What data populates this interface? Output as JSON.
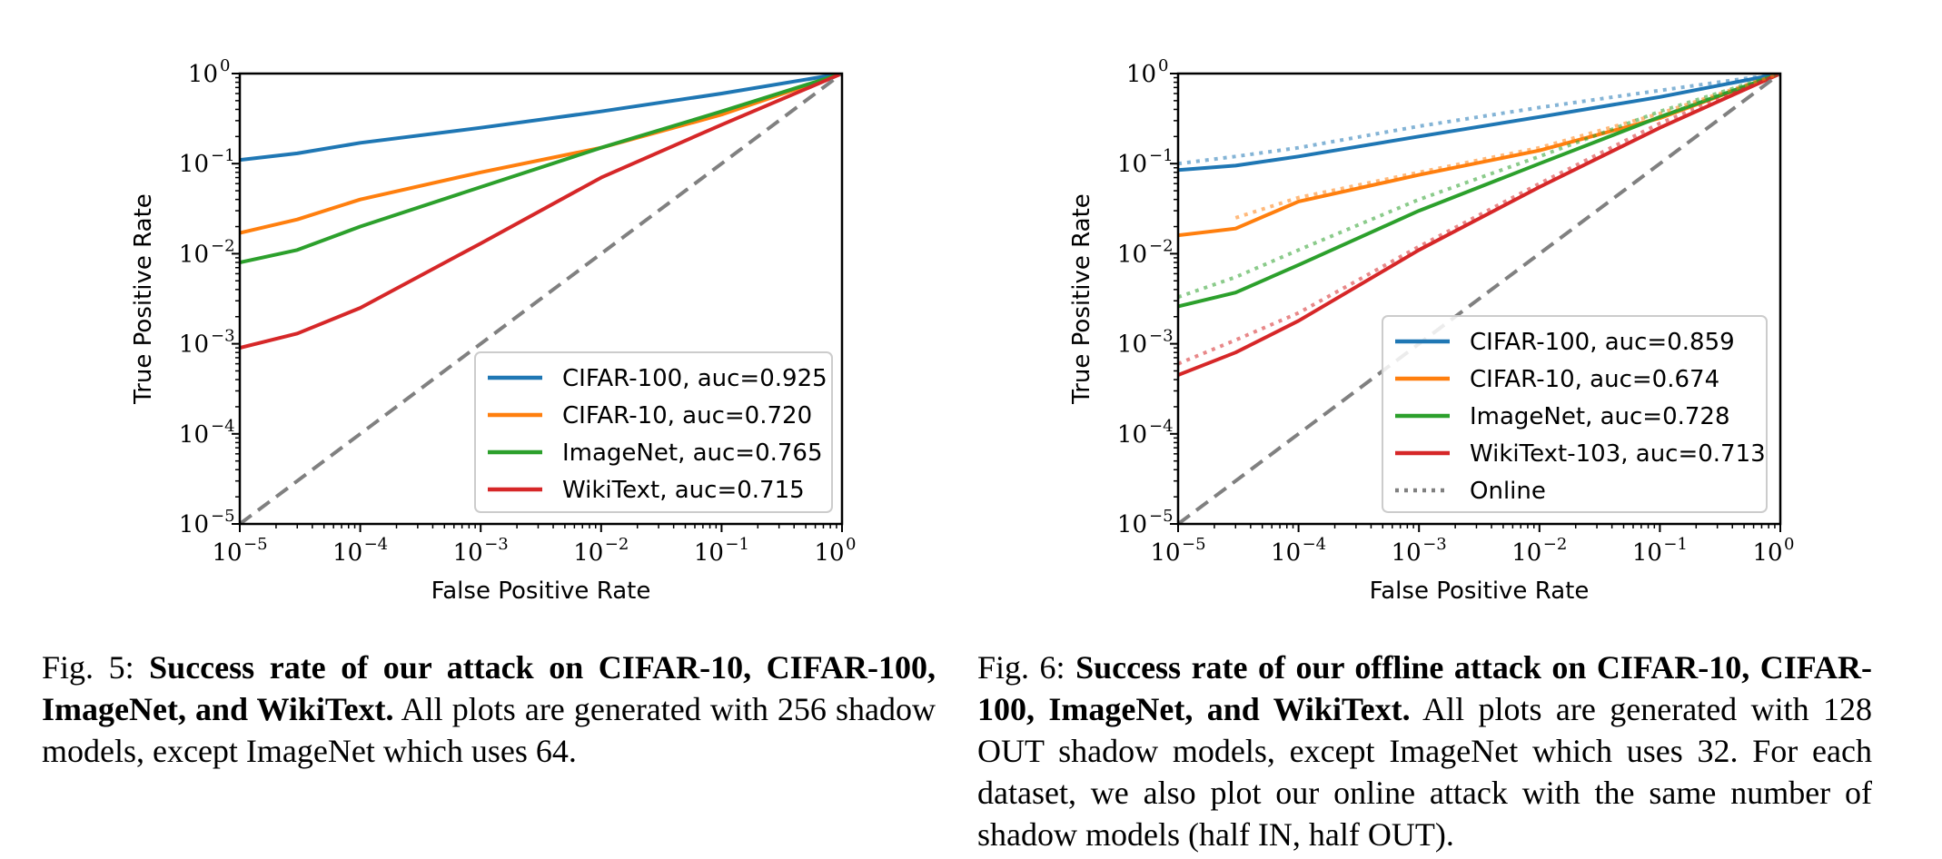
{
  "chart_data": [
    {
      "type": "line",
      "xscale": "log",
      "yscale": "log",
      "xlim": [
        1e-05,
        1
      ],
      "ylim": [
        1e-05,
        1
      ],
      "xlabel": "False Positive Rate",
      "ylabel": "True Positive Rate",
      "xticks": [
        "10",
        "10",
        "10",
        "10",
        "10",
        "10"
      ],
      "xtick_exps": [
        "−5",
        "−4",
        "−3",
        "−2",
        "−1",
        "0"
      ],
      "yticks": [
        "10",
        "10",
        "10",
        "10",
        "10",
        "10"
      ],
      "ytick_exps": [
        "0",
        "−1",
        "−2",
        "−3",
        "−4",
        "−5"
      ],
      "legend_position": "lower-right",
      "series": [
        {
          "name": "CIFAR-100, auc=0.925",
          "color": "#1f77b4",
          "x": [
            1e-05,
            3e-05,
            0.0001,
            0.001,
            0.01,
            0.1,
            1
          ],
          "y": [
            0.11,
            0.13,
            0.17,
            0.25,
            0.38,
            0.6,
            1
          ]
        },
        {
          "name": "CIFAR-10, auc=0.720",
          "color": "#ff7f0e",
          "x": [
            1e-05,
            3e-05,
            0.0001,
            0.001,
            0.01,
            0.1,
            1
          ],
          "y": [
            0.017,
            0.024,
            0.04,
            0.08,
            0.15,
            0.35,
            1
          ]
        },
        {
          "name": "ImageNet, auc=0.765",
          "color": "#2ca02c",
          "x": [
            1e-05,
            3e-05,
            0.0001,
            0.001,
            0.01,
            0.1,
            1
          ],
          "y": [
            0.008,
            0.011,
            0.02,
            0.055,
            0.15,
            0.38,
            1
          ]
        },
        {
          "name": "WikiText, auc=0.715",
          "color": "#d62728",
          "x": [
            1e-05,
            3e-05,
            0.0001,
            0.001,
            0.01,
            0.1,
            1
          ],
          "y": [
            0.0009,
            0.0013,
            0.0025,
            0.013,
            0.07,
            0.27,
            1
          ]
        },
        {
          "name": "",
          "color": "#808080",
          "dash": true,
          "x": [
            1e-05,
            1
          ],
          "y": [
            1e-05,
            1
          ]
        }
      ]
    },
    {
      "type": "line",
      "xscale": "log",
      "yscale": "log",
      "xlim": [
        1e-05,
        1
      ],
      "ylim": [
        1e-05,
        1
      ],
      "xlabel": "False Positive Rate",
      "ylabel": "True Positive Rate",
      "xticks": [
        "10",
        "10",
        "10",
        "10",
        "10",
        "10"
      ],
      "xtick_exps": [
        "−5",
        "−4",
        "−3",
        "−2",
        "−1",
        "0"
      ],
      "yticks": [
        "10",
        "10",
        "10",
        "10",
        "10",
        "10"
      ],
      "ytick_exps": [
        "0",
        "−1",
        "−2",
        "−3",
        "−4",
        "−5"
      ],
      "legend_position": "lower-right",
      "series": [
        {
          "name": "CIFAR-100, auc=0.859",
          "color": "#1f77b4",
          "x": [
            1e-05,
            3e-05,
            0.0001,
            0.001,
            0.01,
            0.1,
            1
          ],
          "y": [
            0.085,
            0.095,
            0.12,
            0.2,
            0.33,
            0.55,
            1
          ]
        },
        {
          "name": "CIFAR-10, auc=0.674",
          "color": "#ff7f0e",
          "x": [
            1e-05,
            3e-05,
            0.0001,
            0.001,
            0.01,
            0.1,
            1
          ],
          "y": [
            0.016,
            0.019,
            0.038,
            0.075,
            0.14,
            0.32,
            1
          ]
        },
        {
          "name": "ImageNet, auc=0.728",
          "color": "#2ca02c",
          "x": [
            1e-05,
            3e-05,
            0.0001,
            0.001,
            0.01,
            0.1,
            1
          ],
          "y": [
            0.0026,
            0.0037,
            0.0075,
            0.03,
            0.1,
            0.33,
            1
          ]
        },
        {
          "name": "WikiText-103, auc=0.713",
          "color": "#d62728",
          "x": [
            1e-05,
            3e-05,
            0.0001,
            0.001,
            0.01,
            0.1,
            1
          ],
          "y": [
            0.00045,
            0.0008,
            0.0018,
            0.011,
            0.055,
            0.25,
            1
          ]
        },
        {
          "name": "",
          "color": "#1f77b4",
          "online": true,
          "x": [
            1e-05,
            3e-05,
            0.0001,
            0.001,
            0.01,
            0.1,
            1
          ],
          "y": [
            0.1,
            0.12,
            0.15,
            0.26,
            0.42,
            0.65,
            1
          ]
        },
        {
          "name": "",
          "color": "#ff7f0e",
          "online": true,
          "x": [
            3e-05,
            0.0001,
            0.001,
            0.01,
            0.1,
            1
          ],
          "y": [
            0.025,
            0.042,
            0.08,
            0.15,
            0.36,
            1
          ]
        },
        {
          "name": "",
          "color": "#2ca02c",
          "online": true,
          "x": [
            1e-05,
            3e-05,
            0.0001,
            0.001,
            0.01,
            0.1,
            1
          ],
          "y": [
            0.0033,
            0.0055,
            0.011,
            0.04,
            0.12,
            0.38,
            1
          ]
        },
        {
          "name": "",
          "color": "#d62728",
          "online": true,
          "x": [
            1e-05,
            3e-05,
            0.0001,
            0.001,
            0.01,
            0.1,
            1
          ],
          "y": [
            0.0006,
            0.0011,
            0.0022,
            0.012,
            0.06,
            0.28,
            1
          ]
        },
        {
          "name": "",
          "color": "#808080",
          "dash": true,
          "x": [
            1e-05,
            1
          ],
          "y": [
            1e-05,
            1
          ]
        }
      ],
      "legend_extra": {
        "name": "Online",
        "color": "#808080",
        "style": "dotted"
      }
    }
  ],
  "captions": [
    {
      "label": "Fig. 5:",
      "bold": "Success rate of our attack on CIFAR-10, CIFAR-100, ImageNet, and WikiText.",
      "text": "All plots are generated with 256 shadow models, except ImageNet which uses 64."
    },
    {
      "label": "Fig. 6:",
      "bold": "Success rate of our offline attack on CIFAR-10, CIFAR-100, ImageNet, and WikiText.",
      "text": "All plots are generated with 128 OUT shadow models, except ImageNet which uses 32. For each dataset, we also plot our online attack with the same number of shadow models (half IN, half OUT)."
    }
  ]
}
